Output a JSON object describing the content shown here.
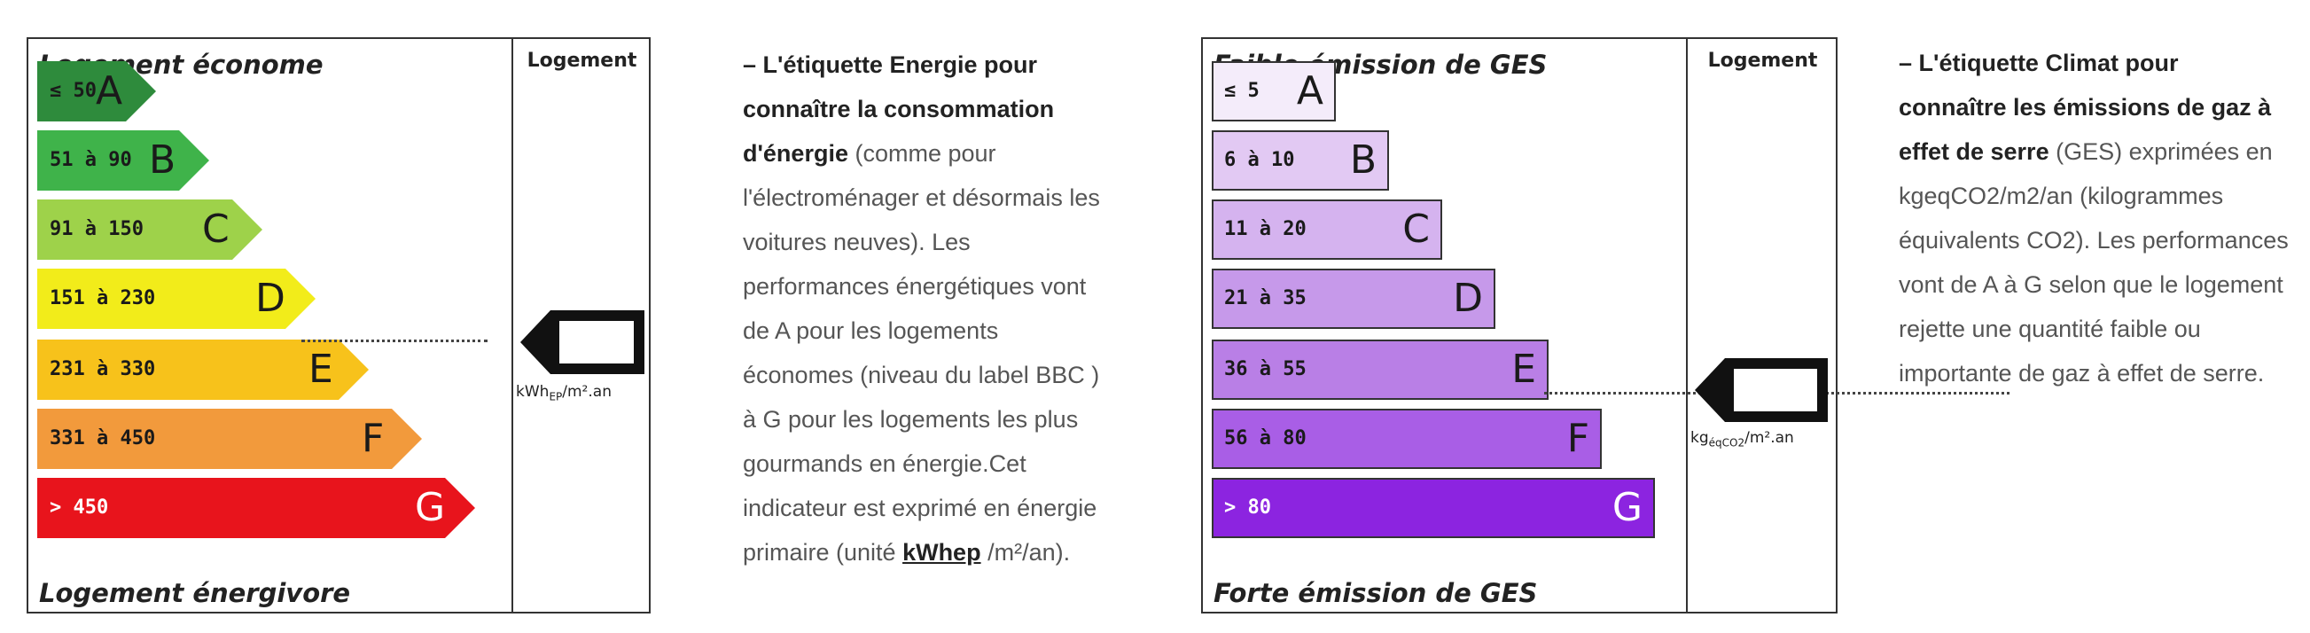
{
  "dpe": {
    "top_heading": "Logement économe",
    "bottom_heading": "Logement énergivore",
    "column_title": "Logement",
    "unit_main": "kWh",
    "unit_sub": "EP",
    "unit_rest": "/m².an",
    "classes": [
      {
        "range": "≤ 50",
        "letter": "A",
        "color": "#2e8b3c"
      },
      {
        "range": "51 à 90",
        "letter": "B",
        "color": "#3fb34a"
      },
      {
        "range": "91 à 150",
        "letter": "C",
        "color": "#9ed24a"
      },
      {
        "range": "151 à 230",
        "letter": "D",
        "color": "#f2ec1a"
      },
      {
        "range": "231 à 330",
        "letter": "E",
        "color": "#f7c21b"
      },
      {
        "range": "331 à 450",
        "letter": "F",
        "color": "#f29a3c"
      },
      {
        "range": "> 450",
        "letter": "G",
        "color": "#e8141c"
      }
    ]
  },
  "ges": {
    "top_heading": "Faible émission de GES",
    "bottom_heading": "Forte émission de GES",
    "column_title": "Logement",
    "unit_main": "kg",
    "unit_sub": "éqCO2",
    "unit_rest": "/m².an",
    "classes": [
      {
        "range": "≤ 5",
        "letter": "A",
        "color": "#f4ecfa"
      },
      {
        "range": "6 à 10",
        "letter": "B",
        "color": "#e2c9f3"
      },
      {
        "range": "11 à 20",
        "letter": "C",
        "color": "#d5b3ef"
      },
      {
        "range": "21 à 35",
        "letter": "D",
        "color": "#c699ea"
      },
      {
        "range": "36 à 55",
        "letter": "E",
        "color": "#b97fe6"
      },
      {
        "range": "56 à 80",
        "letter": "F",
        "color": "#a95ee6"
      },
      {
        "range": "> 80",
        "letter": "G",
        "color": "#8c24e0"
      }
    ]
  },
  "text_energy": {
    "dash": "– ",
    "bold_1": "L'étiquette Energie pour connaître la consommation d'énergie",
    "normal_1": " (comme pour l'électroménager et désormais les voitures neuves). Les performances énergétiques vont de A pour les logements économes (niveau du label BBC ) à G pour les logements les plus gourmands en énergie.Cet indicateur est exprimé en énergie primaire (unité ",
    "underlined": "kWhep",
    "normal_2": " /m²/an)."
  },
  "text_climate": {
    "dash": "– ",
    "bold_1": "L'étiquette Climat pour connaître les émissions de gaz à effet de serre",
    "normal_1": " (GES) exprimées en kgeqCO2/m2/an (kilogrammes équivalents CO2). Les performances vont de A à G selon que le logement rejette une quantité faible ou importante de gaz à effet de serre."
  }
}
